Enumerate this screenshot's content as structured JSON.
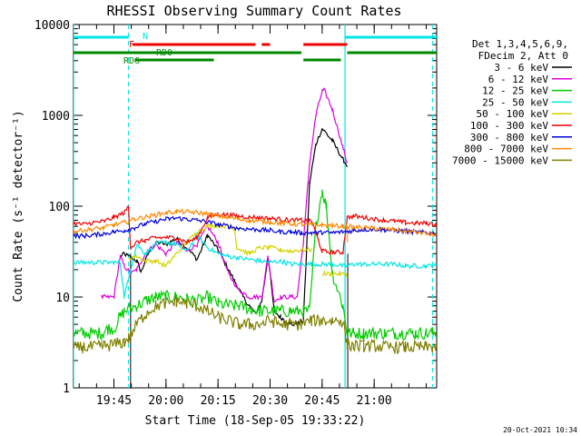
{
  "chart_data": {
    "type": "line",
    "title": "RHESSI Observing Summary Count Rates",
    "xlabel": "Start Time (18-Sep-05 19:33:22)",
    "ylabel": "Count Rate (s⁻¹ detector⁻¹)",
    "yscale": "log",
    "ylim": [
      1,
      10000
    ],
    "xlim": [
      19.556,
      21.3
    ],
    "x_ticks": [
      {
        "label": "19:45",
        "x": 19.75
      },
      {
        "label": "20:00",
        "x": 20.0
      },
      {
        "label": "20:15",
        "x": 20.25
      },
      {
        "label": "20:30",
        "x": 20.5
      },
      {
        "label": "20:45",
        "x": 20.75
      },
      {
        "label": "21:00",
        "x": 21.0
      }
    ],
    "y_ticks": [
      {
        "label": "1",
        "y": 1
      },
      {
        "label": "10",
        "y": 10
      },
      {
        "label": "100",
        "y": 100
      },
      {
        "label": "1000",
        "y": 1000
      },
      {
        "label": "10000",
        "y": 10000
      }
    ],
    "legend_header": [
      "Det 1,3,4,5,6,9,",
      "FDecim 2, Att 0"
    ],
    "series": [
      {
        "name": "3 - 6 keV",
        "color": "#000000",
        "x": [
          19.556,
          19.69,
          19.7,
          19.72,
          19.75,
          19.78,
          19.8,
          19.83,
          19.86,
          19.88,
          19.92,
          19.96,
          20.0,
          20.05,
          20.1,
          20.15,
          20.2,
          20.25,
          20.3,
          20.33,
          20.37,
          20.4,
          20.43,
          20.46,
          20.49,
          20.52,
          20.55,
          20.6,
          20.63,
          20.66,
          20.69,
          20.72,
          20.75,
          20.8,
          20.85,
          20.87,
          20.873
        ],
        "y": [
          null,
          null,
          null,
          null,
          null,
          28,
          30,
          27,
          25,
          19,
          32,
          40,
          38,
          44,
          35,
          26,
          48,
          33,
          20,
          15,
          10,
          8,
          6.5,
          9,
          28,
          7,
          6,
          5,
          5,
          5.5,
          180,
          480,
          720,
          520,
          330,
          280,
          null
        ]
      },
      {
        "name": "6 - 12 keV",
        "color": "#dd00dd",
        "x": [
          19.556,
          19.6,
          19.65,
          19.69,
          19.7,
          19.72,
          19.75,
          19.78,
          19.8,
          19.83,
          19.86,
          19.9,
          19.95,
          20.0,
          20.05,
          20.1,
          20.15,
          20.2,
          20.25,
          20.3,
          20.35,
          20.4,
          20.43,
          20.46,
          20.49,
          20.52,
          20.55,
          20.6,
          20.63,
          20.66,
          20.69,
          20.72,
          20.75,
          20.76,
          20.8,
          20.85,
          20.87,
          20.9,
          20.95,
          21.0,
          21.05,
          21.1,
          21.15,
          21.2,
          21.25,
          21.28,
          21.3
        ],
        "y": [
          null,
          null,
          null,
          10,
          10,
          10,
          10,
          28,
          22,
          18,
          20,
          30,
          38,
          30,
          40,
          32,
          38,
          60,
          40,
          18,
          12,
          10,
          10,
          10,
          28,
          9,
          10,
          10,
          10,
          40,
          300,
          1000,
          1850,
          1900,
          1150,
          440,
          300,
          null,
          null,
          null,
          null,
          null,
          null,
          null,
          null,
          null,
          null
        ]
      },
      {
        "name": "12 - 25 keV",
        "color": "#00cc00",
        "x": [
          19.556,
          19.6,
          19.65,
          19.69,
          19.7,
          19.72,
          19.75,
          19.78,
          19.8,
          19.83,
          19.86,
          19.9,
          19.95,
          20.0,
          20.05,
          20.1,
          20.15,
          20.2,
          20.25,
          20.3,
          20.35,
          20.4,
          20.45,
          20.5,
          20.55,
          20.6,
          20.63,
          20.66,
          20.69,
          20.72,
          20.75,
          20.77,
          20.8,
          20.85,
          20.87,
          20.9,
          20.95,
          21.0,
          21.05,
          21.1,
          21.15,
          21.2,
          21.25,
          21.28,
          21.3
        ],
        "y": [
          4,
          4,
          4,
          4,
          4,
          4.5,
          4.5,
          6,
          7,
          7.5,
          8,
          9,
          10,
          10,
          10,
          9.5,
          9,
          10,
          8.5,
          8,
          8,
          7.5,
          7,
          7,
          7,
          7,
          7,
          7,
          7,
          60,
          150,
          100,
          18,
          8,
          4,
          4,
          4,
          4,
          4,
          4,
          4,
          4,
          4,
          4,
          4
        ]
      },
      {
        "name": "25 - 50 keV",
        "color": "#00e5e5",
        "x": [
          19.556,
          19.6,
          19.65,
          19.7,
          19.75,
          19.78,
          19.8,
          19.83,
          19.86,
          19.9,
          19.95,
          20.0,
          20.05,
          20.1,
          20.15,
          20.2,
          20.25,
          20.3,
          20.35,
          20.4,
          20.45,
          20.5,
          20.55,
          20.6,
          20.65,
          20.7,
          20.75,
          20.8,
          20.85,
          20.87,
          20.9,
          20.95,
          21.0,
          21.05,
          21.1,
          21.15,
          21.2,
          21.25,
          21.28,
          21.3
        ],
        "y": [
          24,
          24,
          24,
          24,
          24,
          24,
          10,
          20,
          38,
          30,
          38,
          40,
          38,
          32,
          48,
          35,
          30,
          28,
          27,
          26,
          25,
          24,
          25,
          23,
          23,
          23,
          23,
          23,
          22,
          22,
          23,
          23,
          23,
          23,
          23,
          22,
          22,
          22,
          22,
          22
        ]
      },
      {
        "name": "50 - 100 keV",
        "color": "#d4d400",
        "x": [
          19.82,
          19.86,
          19.9,
          19.95,
          20.0,
          20.05,
          20.1,
          20.15,
          20.2,
          20.25,
          20.3,
          20.33,
          20.34,
          20.4,
          20.45,
          20.5,
          20.55,
          20.6,
          20.65,
          20.7,
          20.72,
          20.75,
          20.8,
          20.85,
          20.87
        ],
        "y": [
          27,
          28,
          25,
          25,
          22,
          30,
          40,
          52,
          60,
          62,
          60,
          55,
          35,
          30,
          35,
          35,
          33,
          32,
          33,
          33,
          null,
          18,
          18,
          18,
          18
        ]
      },
      {
        "name": "100 - 300 keV",
        "color": "#ee0000",
        "x": [
          19.556,
          19.6,
          19.65,
          19.7,
          19.75,
          19.8,
          19.82,
          19.83,
          19.86,
          19.9,
          19.95,
          20.0,
          20.05,
          20.1,
          20.15,
          20.2,
          20.25,
          20.3,
          20.35,
          20.4,
          20.45,
          20.5,
          20.55,
          20.6,
          20.65,
          20.7,
          20.75,
          20.8,
          20.85,
          20.87,
          20.9,
          20.95,
          21.0,
          21.05,
          21.1,
          21.15,
          21.2,
          21.25,
          21.28,
          21.3
        ],
        "y": [
          65,
          63,
          66,
          68,
          75,
          85,
          100,
          35,
          40,
          42,
          45,
          45,
          45,
          40,
          45,
          75,
          82,
          80,
          78,
          76,
          75,
          73,
          72,
          70,
          70,
          68,
          32,
          31,
          31,
          75,
          78,
          75,
          72,
          70,
          68,
          66,
          65,
          65,
          64,
          62
        ]
      },
      {
        "name": "300 - 800 keV",
        "color": "#0000dd",
        "x": [
          19.556,
          19.6,
          19.65,
          19.7,
          19.75,
          19.8,
          19.85,
          19.9,
          19.95,
          20.0,
          20.05,
          20.1,
          20.15,
          20.2,
          20.25,
          20.3,
          20.35,
          20.4,
          20.45,
          20.5,
          20.55,
          20.6,
          20.65,
          20.7,
          20.75,
          20.8,
          20.85,
          20.9,
          20.95,
          21.0,
          21.05,
          21.1,
          21.15,
          21.2,
          21.25,
          21.3
        ],
        "y": [
          47,
          47,
          48,
          50,
          52,
          54,
          58,
          64,
          68,
          72,
          74,
          72,
          70,
          67,
          63,
          60,
          57,
          56,
          55,
          54,
          52,
          52,
          51,
          51,
          51,
          51,
          52,
          54,
          55,
          56,
          55,
          54,
          53,
          52,
          51,
          50
        ]
      },
      {
        "name": "800 - 7000 keV",
        "color": "#ff8800",
        "x": [
          19.556,
          19.6,
          19.65,
          19.7,
          19.75,
          19.8,
          19.85,
          19.9,
          19.95,
          20.0,
          20.05,
          20.1,
          20.15,
          20.2,
          20.25,
          20.3,
          20.35,
          20.4,
          20.45,
          20.5,
          20.55,
          20.6,
          20.65,
          20.7,
          20.75,
          20.8,
          20.85,
          20.9,
          20.95,
          21.0,
          21.05,
          21.1,
          21.15,
          21.2,
          21.25,
          21.3
        ],
        "y": [
          53,
          54,
          56,
          58,
          62,
          66,
          72,
          76,
          80,
          85,
          87,
          87,
          85,
          82,
          78,
          75,
          72,
          70,
          68,
          67,
          65,
          64,
          63,
          62,
          62,
          61,
          60,
          59,
          58,
          57,
          56,
          55,
          53,
          52,
          50,
          48
        ]
      },
      {
        "name": "7000 - 15000 keV",
        "color": "#808000",
        "x": [
          19.556,
          19.6,
          19.65,
          19.7,
          19.75,
          19.8,
          19.82,
          19.86,
          19.9,
          19.95,
          20.0,
          20.05,
          20.1,
          20.15,
          20.2,
          20.25,
          20.3,
          20.35,
          20.4,
          20.45,
          20.5,
          20.55,
          20.6,
          20.65,
          20.7,
          20.75,
          20.8,
          20.85,
          20.87,
          20.9,
          20.95,
          21.0,
          21.05,
          21.1,
          21.15,
          21.2,
          21.25,
          21.28,
          21.3
        ],
        "y": [
          2.7,
          2.8,
          2.8,
          2.9,
          3,
          3.2,
          3.5,
          5,
          6.5,
          8,
          8.5,
          9,
          8.5,
          8,
          7,
          6,
          5.5,
          5,
          5,
          5,
          5.5,
          5,
          5,
          5,
          5.5,
          5.5,
          5.5,
          5.5,
          3,
          2.9,
          2.9,
          2.9,
          2.8,
          2.8,
          2.8,
          2.8,
          2.8,
          2.8,
          2.8
        ]
      }
    ],
    "annotations": [
      {
        "label": "N",
        "color": "#00e5e5",
        "segments": [
          [
            19.556,
            19.82
          ],
          [
            20.86,
            21.3
          ]
        ]
      },
      {
        "label": "F",
        "color": "#ee0000",
        "segments": [
          [
            19.84,
            20.43
          ],
          [
            20.46,
            20.5
          ],
          [
            20.66,
            20.87
          ]
        ]
      },
      {
        "label": "RD0",
        "color": "#008800",
        "segments": [
          [
            19.556,
            20.65
          ],
          [
            20.87,
            21.3
          ]
        ]
      },
      {
        "label": "RD6",
        "color": "#008800",
        "segments": [
          [
            19.85,
            20.23
          ],
          [
            20.66,
            20.84
          ]
        ]
      }
    ],
    "vertical_lines": {
      "cyan_solid": [
        19.556,
        20.86
      ],
      "cyan_dashed": [
        19.82,
        21.28
      ],
      "black": [
        19.83,
        20.873
      ],
      "orange": [
        20.872
      ]
    }
  },
  "footer_date": "20-Oct-2021 10:34"
}
